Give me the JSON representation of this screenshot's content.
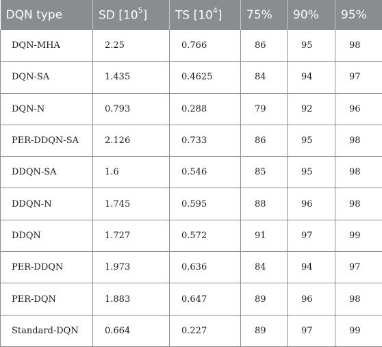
{
  "table": {
    "headers": {
      "type": "DQN type",
      "sd_prefix": "SD [10",
      "sd_exp": "5",
      "sd_suffix": "]",
      "ts_prefix": "TS [10",
      "ts_exp": "4",
      "ts_suffix": "]",
      "p75": "75%",
      "p90": "90%",
      "p95": "95%"
    },
    "rows": [
      {
        "type": "DQN-MHA",
        "sd": "2.25",
        "ts": "0.766",
        "p75": "86",
        "p90": "95",
        "p95": "98"
      },
      {
        "type": "DQN-SA",
        "sd": "1.435",
        "ts": "0.4625",
        "p75": "84",
        "p90": "94",
        "p95": "97"
      },
      {
        "type": "DQN-N",
        "sd": "0.793",
        "ts": "0.288",
        "p75": "79",
        "p90": "92",
        "p95": "96"
      },
      {
        "type": "PER-DDQN-SA",
        "sd": "2.126",
        "ts": "0.733",
        "p75": "86",
        "p90": "95",
        "p95": "98"
      },
      {
        "type": "DDQN-SA",
        "sd": "1.6",
        "ts": "0.546",
        "p75": "85",
        "p90": "95",
        "p95": "98"
      },
      {
        "type": "DDQN-N",
        "sd": "1.745",
        "ts": "0.595",
        "p75": "88",
        "p90": "96",
        "p95": "98"
      },
      {
        "type": "DDQN",
        "sd": "1.727",
        "ts": "0.572",
        "p75": "91",
        "p90": "97",
        "p95": "99"
      },
      {
        "type": "PER-DDQN",
        "sd": "1.973",
        "ts": "0.636",
        "p75": "84",
        "p90": "94",
        "p95": "97"
      },
      {
        "type": "PER-DQN",
        "sd": "1.883",
        "ts": "0.647",
        "p75": "89",
        "p90": "96",
        "p95": "98"
      },
      {
        "type": "Standard-DQN",
        "sd": "0.664",
        "ts": "0.227",
        "p75": "89",
        "p90": "97",
        "p95": "99"
      }
    ]
  },
  "colors": {
    "header_bg": "#8a8c8e",
    "header_text": "#ffffff",
    "grid": "#8a8c8e"
  }
}
